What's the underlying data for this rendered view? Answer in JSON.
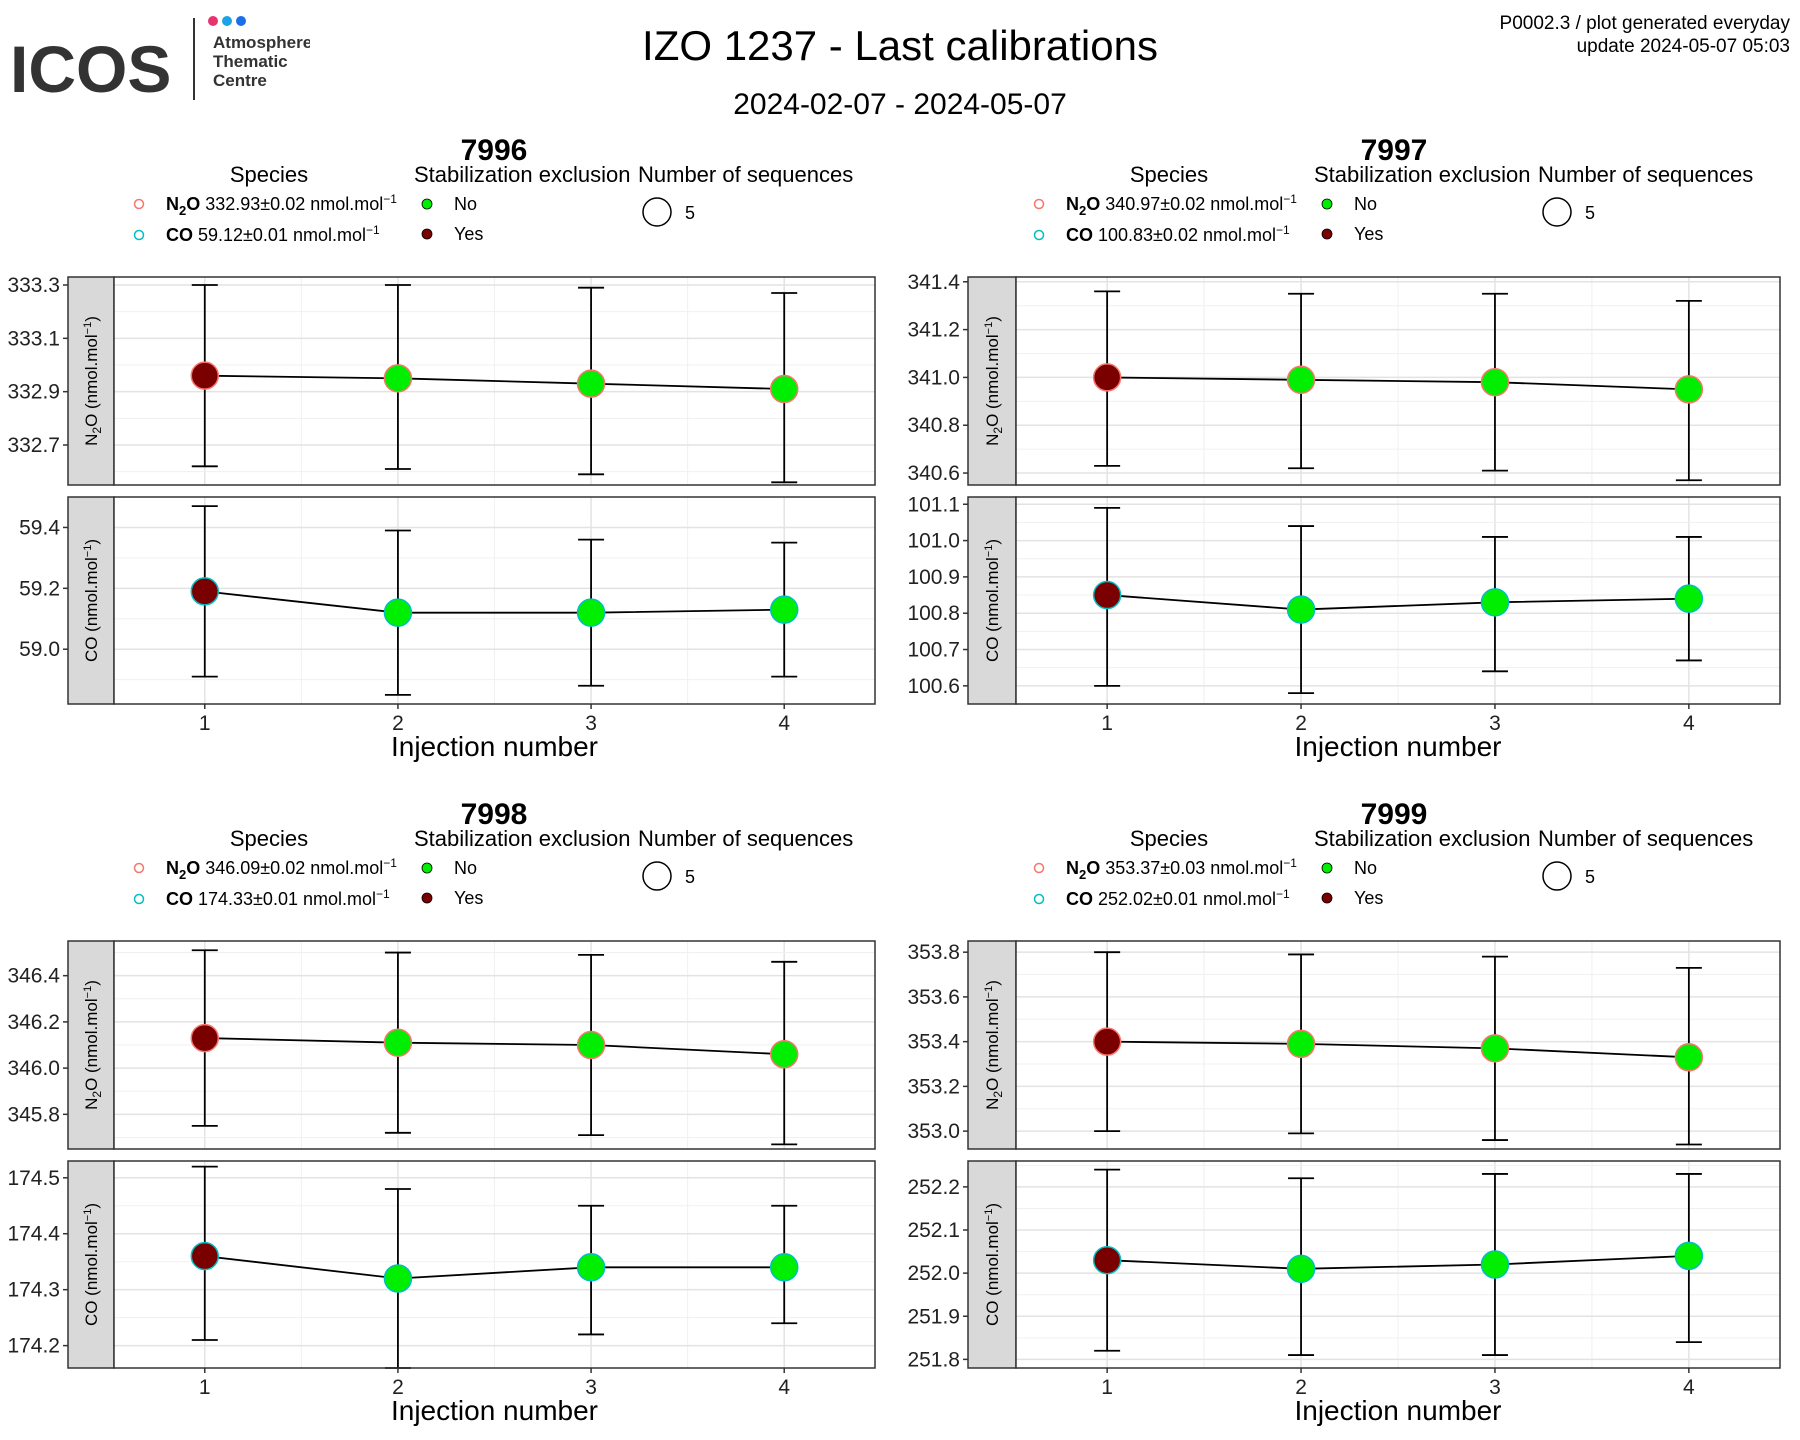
{
  "header": {
    "logo_wordmark": "ICOS",
    "logo_line1": "Atmosphere",
    "logo_line2": "Thematic",
    "logo_line3": "Centre",
    "logo_dot_colors": [
      "#e8336f",
      "#1aa3e8",
      "#1a6fe8"
    ],
    "title": "IZO 1237 - Last calibrations",
    "subtitle": "2024-02-07 - 2024-05-07",
    "meta_line1": "P0002.3 / plot generated everyday",
    "meta_line2": "update  2024-05-07 05:03"
  },
  "legend_labels": {
    "species_title": "Species",
    "exclusion_title": "Stabilization exclusion",
    "sequences_title": "Number of sequences",
    "no_label": "No",
    "yes_label": "Yes",
    "sequences_value": "5"
  },
  "colors": {
    "no": "#00ee00",
    "yes": "#7a0000",
    "n2o_outline": "#f8766d",
    "co_outline": "#00bfc4",
    "strip_bg": "#d9d9d9"
  },
  "chart_data": [
    {
      "type": "line",
      "title": "7996",
      "xlabel": "Injection number",
      "x": [
        1,
        2,
        3,
        4
      ],
      "legend": [
        {
          "species": "N2O",
          "value": "332.93",
          "pm": "0.02",
          "unit": "nmol.mol",
          "exp": "−1"
        },
        {
          "species": "CO",
          "value": "59.12",
          "pm": "0.01",
          "unit": "nmol.mol",
          "exp": "−1"
        }
      ],
      "facets": [
        {
          "species": "N2O",
          "strip": "N2O (nmol.mol",
          "ylim": [
            332.55,
            333.33
          ],
          "ticks": [
            "333.3",
            "333.1",
            "332.9",
            "332.7"
          ],
          "values": [
            332.96,
            332.95,
            332.93,
            332.91
          ],
          "err_upper": [
            333.3,
            333.3,
            333.29,
            333.27
          ],
          "err_lower": [
            332.62,
            332.61,
            332.59,
            332.56
          ],
          "excluded": [
            "Yes",
            "No",
            "No",
            "No"
          ]
        },
        {
          "species": "CO",
          "strip": "CO (nmol.mol",
          "ylim": [
            58.82,
            59.5
          ],
          "ticks": [
            "59.4",
            "59.2",
            "59.0"
          ],
          "values": [
            59.19,
            59.12,
            59.12,
            59.13
          ],
          "err_upper": [
            59.47,
            59.39,
            59.36,
            59.35
          ],
          "err_lower": [
            58.91,
            58.85,
            58.88,
            58.91
          ],
          "excluded": [
            "Yes",
            "No",
            "No",
            "No"
          ]
        }
      ]
    },
    {
      "type": "line",
      "title": "7997",
      "xlabel": "Injection number",
      "x": [
        1,
        2,
        3,
        4
      ],
      "legend": [
        {
          "species": "N2O",
          "value": "340.97",
          "pm": "0.02",
          "unit": "nmol.mol",
          "exp": "−1"
        },
        {
          "species": "CO",
          "value": "100.83",
          "pm": "0.02",
          "unit": "nmol.mol",
          "exp": "−1"
        }
      ],
      "facets": [
        {
          "species": "N2O",
          "strip": "N2O (nmol.mol",
          "ylim": [
            340.55,
            341.42
          ],
          "ticks": [
            "341.4",
            "341.2",
            "341.0",
            "340.8",
            "340.6"
          ],
          "values": [
            341.0,
            340.99,
            340.98,
            340.95
          ],
          "err_upper": [
            341.36,
            341.35,
            341.35,
            341.32
          ],
          "err_lower": [
            340.63,
            340.62,
            340.61,
            340.57
          ],
          "excluded": [
            "Yes",
            "No",
            "No",
            "No"
          ]
        },
        {
          "species": "CO",
          "strip": "CO (nmol.mol",
          "ylim": [
            100.55,
            101.12
          ],
          "ticks": [
            "101.1",
            "101.0",
            "100.9",
            "100.8",
            "100.7",
            "100.6"
          ],
          "values": [
            100.85,
            100.81,
            100.83,
            100.84
          ],
          "err_upper": [
            101.09,
            101.04,
            101.01,
            101.01
          ],
          "err_lower": [
            100.6,
            100.58,
            100.64,
            100.67
          ],
          "excluded": [
            "Yes",
            "No",
            "No",
            "No"
          ]
        }
      ]
    },
    {
      "type": "line",
      "title": "7998",
      "xlabel": "Injection number",
      "x": [
        1,
        2,
        3,
        4
      ],
      "legend": [
        {
          "species": "N2O",
          "value": "346.09",
          "pm": "0.02",
          "unit": "nmol.mol",
          "exp": "−1"
        },
        {
          "species": "CO",
          "value": "174.33",
          "pm": "0.01",
          "unit": "nmol.mol",
          "exp": "−1"
        }
      ],
      "facets": [
        {
          "species": "N2O",
          "strip": "N2O (nmol.mol",
          "ylim": [
            345.65,
            346.55
          ],
          "ticks": [
            "346.4",
            "346.2",
            "346.0",
            "345.8"
          ],
          "values": [
            346.13,
            346.11,
            346.1,
            346.06
          ],
          "err_upper": [
            346.51,
            346.5,
            346.49,
            346.46
          ],
          "err_lower": [
            345.75,
            345.72,
            345.71,
            345.67
          ],
          "excluded": [
            "Yes",
            "No",
            "No",
            "No"
          ]
        },
        {
          "species": "CO",
          "strip": "CO (nmol.mol",
          "ylim": [
            174.16,
            174.53
          ],
          "ticks": [
            "174.5",
            "174.4",
            "174.3",
            "174.2"
          ],
          "values": [
            174.36,
            174.32,
            174.34,
            174.34
          ],
          "err_upper": [
            174.52,
            174.48,
            174.45,
            174.45
          ],
          "err_lower": [
            174.21,
            174.16,
            174.22,
            174.24
          ],
          "excluded": [
            "Yes",
            "No",
            "No",
            "No"
          ]
        }
      ]
    },
    {
      "type": "line",
      "title": "7999",
      "xlabel": "Injection number",
      "x": [
        1,
        2,
        3,
        4
      ],
      "legend": [
        {
          "species": "N2O",
          "value": "353.37",
          "pm": "0.03",
          "unit": "nmol.mol",
          "exp": "−1"
        },
        {
          "species": "CO",
          "value": "252.02",
          "pm": "0.01",
          "unit": "nmol.mol",
          "exp": "−1"
        }
      ],
      "facets": [
        {
          "species": "N2O",
          "strip": "N2O (nmol.mol",
          "ylim": [
            352.92,
            353.85
          ],
          "ticks": [
            "353.8",
            "353.6",
            "353.4",
            "353.2",
            "353.0"
          ],
          "values": [
            353.4,
            353.39,
            353.37,
            353.33
          ],
          "err_upper": [
            353.8,
            353.79,
            353.78,
            353.73
          ],
          "err_lower": [
            353.0,
            352.99,
            352.96,
            352.94
          ],
          "excluded": [
            "Yes",
            "No",
            "No",
            "No"
          ]
        },
        {
          "species": "CO",
          "strip": "CO (nmol.mol",
          "ylim": [
            251.78,
            252.26
          ],
          "ticks": [
            "252.2",
            "252.1",
            "252.0",
            "251.9",
            "251.8"
          ],
          "values": [
            252.03,
            252.01,
            252.02,
            252.04
          ],
          "err_upper": [
            252.24,
            252.22,
            252.23,
            252.23
          ],
          "err_lower": [
            251.82,
            251.81,
            251.81,
            251.84
          ],
          "excluded": [
            "Yes",
            "No",
            "No",
            "No"
          ]
        }
      ]
    }
  ]
}
